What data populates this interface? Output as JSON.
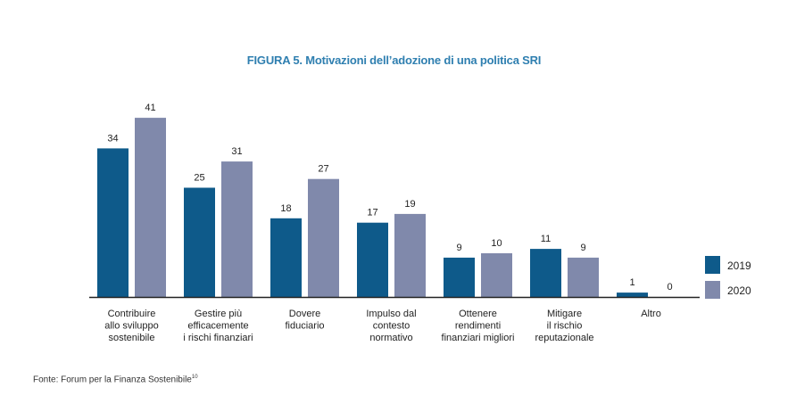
{
  "chart_data": {
    "type": "bar",
    "title": "FIGURA 5. Motivazioni dell’adozione di una politica SRI",
    "categories": [
      [
        "Contribuire",
        "allo sviluppo",
        "sostenibile"
      ],
      [
        "Gestire più",
        "efficacemente",
        "i rischi finanziari"
      ],
      [
        "Dovere",
        "fiduciario"
      ],
      [
        "Impulso dal",
        "contesto",
        "normativo"
      ],
      [
        "Ottenere",
        "rendimenti",
        "finanziari migliori"
      ],
      [
        "Mitigare",
        "il rischio",
        "reputazionale"
      ],
      [
        "Altro"
      ]
    ],
    "series": [
      {
        "name": "2019",
        "values": [
          34,
          25,
          18,
          17,
          9,
          11,
          1
        ],
        "color": "#0e5a8a"
      },
      {
        "name": "2020",
        "values": [
          41,
          31,
          27,
          19,
          10,
          9,
          0
        ],
        "color": "#8089ab"
      }
    ],
    "xlabel": "",
    "ylabel": "",
    "ylim": [
      0,
      41
    ],
    "grid": false,
    "legend": "right"
  },
  "source": {
    "text": "Fonte: Forum per la Finanza Sostenibile",
    "footnote": "10"
  },
  "colors": {
    "title": "#2f7fb0",
    "axis": "#222222"
  }
}
